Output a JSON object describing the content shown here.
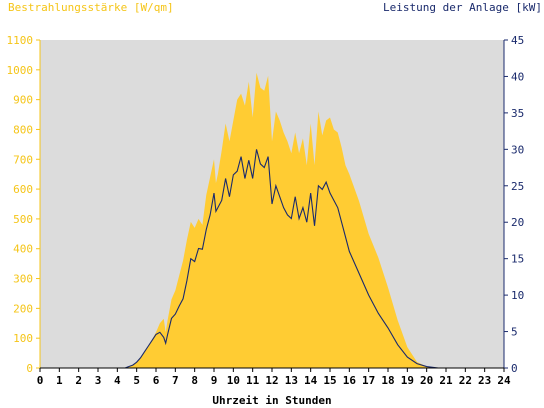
{
  "chart_data": {
    "type": "area",
    "left_axis_label": "Bestrahlungsstärke [W/qm]",
    "right_axis_label": "Leistung der Anlage [kW]",
    "xlabel": "Uhrzeit in Stunden",
    "x_range": [
      0,
      24
    ],
    "x_ticks": [
      "0",
      "1",
      "2",
      "3",
      "4",
      "5",
      "6",
      "7",
      "8",
      "9",
      "10",
      "11",
      "12",
      "13",
      "14",
      "15",
      "16",
      "17",
      "18",
      "19",
      "20",
      "21",
      "22",
      "23",
      "24"
    ],
    "left_range": [
      0,
      1100
    ],
    "left_ticks": [
      "0",
      "100",
      "200",
      "300",
      "400",
      "500",
      "600",
      "700",
      "800",
      "900",
      "1000",
      "1100"
    ],
    "right_range": [
      0,
      45
    ],
    "right_ticks": [
      "0",
      "5",
      "10",
      "15",
      "20",
      "25",
      "30",
      "35",
      "40",
      "45"
    ],
    "colors": {
      "plot_background": "#dcdcdc",
      "irradiance_fill": "#ffcc33",
      "left_axis": "#f5c518",
      "right_axis": "#1a2a6c",
      "power_line": "#1a2a6c"
    },
    "series": [
      {
        "name": "Bestrahlungsstärke [W/qm]",
        "axis": "left",
        "style": "area",
        "x": [
          0,
          4.4,
          4.6,
          4.8,
          5.0,
          5.2,
          5.4,
          5.6,
          5.8,
          6.0,
          6.2,
          6.4,
          6.5,
          6.6,
          6.8,
          7.0,
          7.2,
          7.4,
          7.6,
          7.8,
          8.0,
          8.2,
          8.4,
          8.6,
          8.8,
          9.0,
          9.1,
          9.2,
          9.4,
          9.6,
          9.8,
          10.0,
          10.2,
          10.4,
          10.6,
          10.8,
          11.0,
          11.2,
          11.4,
          11.6,
          11.8,
          12.0,
          12.2,
          12.4,
          12.6,
          12.8,
          13.0,
          13.2,
          13.4,
          13.6,
          13.8,
          14.0,
          14.2,
          14.4,
          14.6,
          14.8,
          15.0,
          15.2,
          15.4,
          15.6,
          15.8,
          16.0,
          16.5,
          17.0,
          17.5,
          18.0,
          18.5,
          19.0,
          19.5,
          20.0,
          20.3,
          20.6,
          21.0,
          24
        ],
        "values": [
          0,
          0,
          5,
          10,
          20,
          35,
          55,
          75,
          95,
          120,
          150,
          165,
          120,
          160,
          230,
          260,
          310,
          360,
          430,
          490,
          470,
          500,
          480,
          580,
          640,
          700,
          620,
          650,
          730,
          820,
          760,
          830,
          900,
          920,
          880,
          960,
          840,
          990,
          940,
          930,
          980,
          760,
          860,
          830,
          790,
          760,
          720,
          790,
          720,
          770,
          680,
          820,
          680,
          860,
          780,
          830,
          840,
          800,
          790,
          740,
          680,
          650,
          560,
          450,
          370,
          270,
          160,
          70,
          20,
          5,
          2,
          0,
          0,
          0
        ]
      },
      {
        "name": "Leistung der Anlage [kW]",
        "axis": "right",
        "style": "line",
        "x": [
          0,
          4.4,
          4.6,
          4.8,
          5.0,
          5.2,
          5.4,
          5.6,
          5.8,
          6.0,
          6.2,
          6.4,
          6.5,
          6.6,
          6.8,
          7.0,
          7.2,
          7.4,
          7.6,
          7.8,
          8.0,
          8.2,
          8.4,
          8.6,
          8.8,
          9.0,
          9.1,
          9.2,
          9.4,
          9.6,
          9.8,
          10.0,
          10.2,
          10.4,
          10.6,
          10.8,
          11.0,
          11.2,
          11.4,
          11.6,
          11.8,
          12.0,
          12.2,
          12.4,
          12.6,
          12.8,
          13.0,
          13.2,
          13.4,
          13.6,
          13.8,
          14.0,
          14.2,
          14.4,
          14.6,
          14.8,
          15.0,
          15.2,
          15.4,
          15.6,
          15.8,
          16.0,
          16.5,
          17.0,
          17.5,
          18.0,
          18.5,
          19.0,
          19.5,
          20.0,
          20.3,
          20.6,
          21.0,
          24
        ],
        "values": [
          0,
          0,
          0.2,
          0.4,
          0.8,
          1.4,
          2.2,
          3.0,
          3.8,
          4.6,
          4.9,
          4.2,
          3.4,
          4.6,
          6.8,
          7.4,
          8.5,
          9.5,
          12.0,
          15.0,
          14.6,
          16.4,
          16.3,
          19.0,
          21.0,
          24.0,
          21.5,
          22.0,
          23.0,
          26.0,
          23.5,
          26.5,
          27.0,
          29.0,
          26.0,
          28.5,
          26.0,
          30.0,
          28.0,
          27.5,
          29.0,
          22.5,
          25.0,
          23.5,
          22.0,
          21.0,
          20.5,
          23.5,
          20.5,
          22.0,
          20.0,
          24.0,
          19.5,
          25.0,
          24.5,
          25.5,
          24.0,
          23.0,
          22.0,
          20.0,
          18.0,
          16.0,
          13.0,
          10.0,
          7.5,
          5.5,
          3.2,
          1.5,
          0.6,
          0.2,
          0.1,
          0,
          0,
          0
        ]
      }
    ]
  }
}
